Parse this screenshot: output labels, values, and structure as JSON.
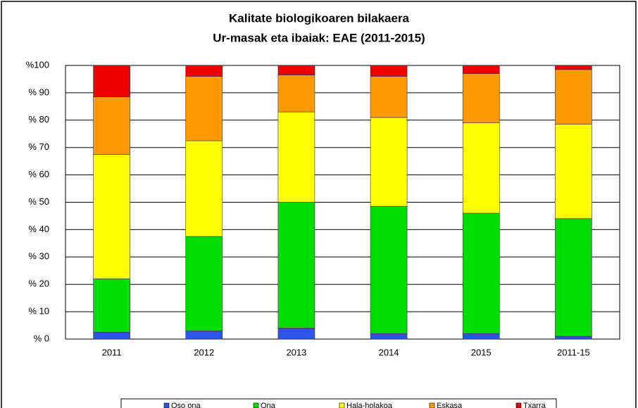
{
  "chart_data": {
    "type": "stacked_bar",
    "title": "Kalitate biologikoaren bilakaera",
    "subtitle": "Ur-masak eta ibaiak: EAE (2011-2015)",
    "categories": [
      "2011",
      "2012",
      "2013",
      "2014",
      "2015",
      "2011-15"
    ],
    "series": [
      {
        "name": "Oso ona",
        "color": "#2a55e8",
        "values": [
          2.5,
          3,
          4,
          2,
          2,
          1
        ]
      },
      {
        "name": "Ona",
        "color": "#00dd00",
        "values": [
          19.5,
          34.5,
          46,
          46.5,
          44,
          43
        ]
      },
      {
        "name": "Hala-holakoa",
        "color": "#ffff00",
        "values": [
          45.5,
          35,
          33,
          32.5,
          33,
          34.5
        ]
      },
      {
        "name": "Eskasa",
        "color": "#ff9900",
        "values": [
          21,
          23.5,
          13.5,
          15,
          18,
          20
        ]
      },
      {
        "name": "Txarra",
        "color": "#ee0000",
        "values": [
          11.5,
          4,
          3.5,
          4,
          3,
          1.5
        ]
      }
    ],
    "ylim": [
      0,
      100
    ],
    "yticks": [
      {
        "value": 0,
        "label": "% 0"
      },
      {
        "value": 10,
        "label": "% 10"
      },
      {
        "value": 20,
        "label": "% 20"
      },
      {
        "value": 30,
        "label": "% 30"
      },
      {
        "value": 40,
        "label": "% 40"
      },
      {
        "value": 50,
        "label": "% 50"
      },
      {
        "value": 60,
        "label": "% 60"
      },
      {
        "value": 70,
        "label": "% 70"
      },
      {
        "value": 80,
        "label": "% 80"
      },
      {
        "value": 90,
        "label": "% 90"
      },
      {
        "value": 100,
        "label": "%100"
      }
    ],
    "grid": true
  }
}
